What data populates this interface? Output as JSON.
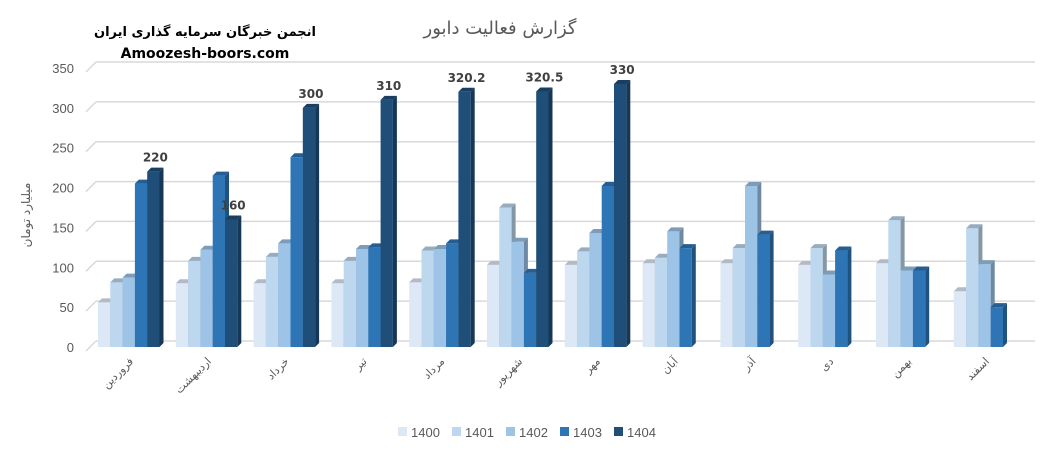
{
  "watermark": {
    "line1": "انجمن خبرگان سرمایه گذاری ایران",
    "line2": "Amoozesh-boors.com"
  },
  "chart_data": {
    "type": "bar",
    "title": "گزارش فعالیت دابور",
    "xlabel": "",
    "ylabel": "میلیارد تومان",
    "ylim": [
      0,
      350
    ],
    "yticks": [
      0,
      50,
      100,
      150,
      200,
      250,
      300,
      350
    ],
    "grid": true,
    "legend_position": "bottom",
    "categories": [
      "فروردین",
      "اردیبهشت",
      "خرداد",
      "تیر",
      "مرداد",
      "شهریور",
      "مهر",
      "آبان",
      "آذر",
      "دی",
      "بهمن",
      "اسفند"
    ],
    "series": [
      {
        "name": "1400",
        "color": "#dde8f6",
        "values": [
          56,
          80,
          80,
          80,
          81,
          103,
          103,
          105,
          105,
          103,
          105,
          70
        ]
      },
      {
        "name": "1401",
        "color": "#bdd7ee",
        "values": [
          81,
          108,
          113,
          108,
          121,
          175,
          120,
          112,
          124,
          124,
          159,
          149
        ]
      },
      {
        "name": "1402",
        "color": "#9dc3e6",
        "values": [
          87,
          122,
          130,
          123,
          123,
          132,
          143,
          145,
          202,
          91,
          96,
          104
        ]
      },
      {
        "name": "1403",
        "color": "#2e75b6",
        "values": [
          205,
          215,
          238,
          125,
          130,
          93,
          202,
          124,
          141,
          121,
          96,
          50
        ]
      },
      {
        "name": "1404",
        "color": "#1f4e79",
        "values": [
          220,
          160,
          300,
          310,
          320.2,
          320.5,
          330,
          null,
          null,
          null,
          null,
          null
        ],
        "data_labels": [
          "220",
          "160",
          "300",
          "310",
          "320.2",
          "320.5",
          "330",
          null,
          null,
          null,
          null,
          null
        ]
      }
    ]
  }
}
